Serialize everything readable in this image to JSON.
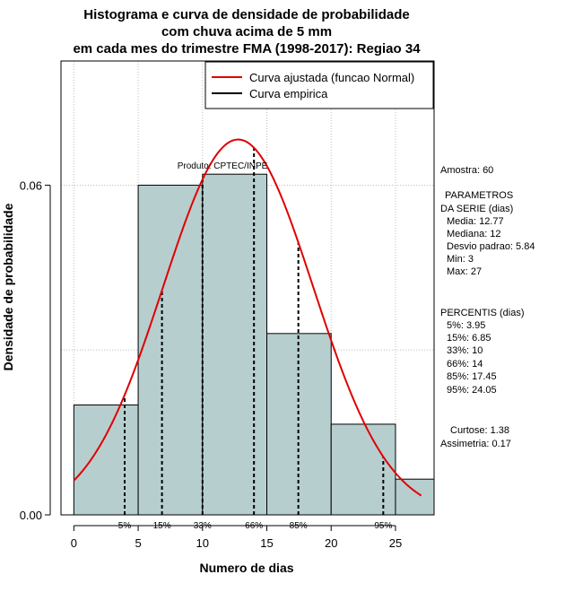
{
  "chart_data": {
    "type": "bar",
    "title_lines": [
      "Histograma e curva de densidade de probabilidade",
      "com chuva acima de 5 mm",
      "em cada mes do trimestre FMA (1998-2017): Regiao 34"
    ],
    "xlabel": "Numero de dias",
    "ylabel": "Densidade de probabilidade",
    "xlim": [
      -1,
      28
    ],
    "ylim": [
      0,
      0.0826
    ],
    "x_ticks": [
      0,
      5,
      10,
      15,
      20,
      25
    ],
    "x_tick_labels": [
      "0",
      "5",
      "10",
      "15",
      "20",
      "25"
    ],
    "y_ticks": [
      0.0,
      0.06
    ],
    "y_tick_labels": [
      "0.00",
      "0.06"
    ],
    "grid": true,
    "bins": [
      {
        "from": 0,
        "to": 5,
        "density": 0.02
      },
      {
        "from": 5,
        "to": 10,
        "density": 0.06
      },
      {
        "from": 10,
        "to": 15,
        "density": 0.062
      },
      {
        "from": 15,
        "to": 20,
        "density": 0.033
      },
      {
        "from": 20,
        "to": 25,
        "density": 0.0165
      },
      {
        "from": 25,
        "to": 30,
        "density": 0.0065
      }
    ],
    "bar_fill": "#b7cece",
    "curve": {
      "name": "Curva ajustada (funcao Normal)",
      "mean": 12.77,
      "sd": 5.84,
      "from": 0,
      "to": 27,
      "color": "#e00000"
    },
    "empirical_legend": "Curva empirica",
    "percentile_lines": [
      {
        "label": "5%",
        "x": 3.95
      },
      {
        "label": "15%",
        "x": 6.85
      },
      {
        "label": "33%",
        "x": 10
      },
      {
        "label": "66%",
        "x": 14
      },
      {
        "label": "85%",
        "x": 17.45
      },
      {
        "label": "95%",
        "x": 24.05
      }
    ],
    "legend_position": "top-right",
    "product_note": "Produto: CPTEC/INPE"
  },
  "stats_panel": {
    "sample": "Amostra: 60",
    "params_header_1": "PARAMETROS",
    "params_header_2": "DA SERIE (dias)",
    "media": "Media: 12.77",
    "mediana": "Mediana: 12",
    "desvio": "Desvio padrao: 5.84",
    "min": "Min: 3",
    "max": "Max: 27",
    "percentis_header": "PERCENTIS (dias)",
    "p5": "5%: 3.95",
    "p15": "15%: 6.85",
    "p33": "33%: 10",
    "p66": "66%: 14",
    "p85": "85%: 17.45",
    "p95": "95%: 24.05",
    "curtose": "Curtose: 1.38",
    "assimetria": "Assimetria: 0.17"
  },
  "colors": {
    "bar_fill": "#b7cece",
    "curve": "#e00000",
    "grid": "#bdbdbd"
  }
}
